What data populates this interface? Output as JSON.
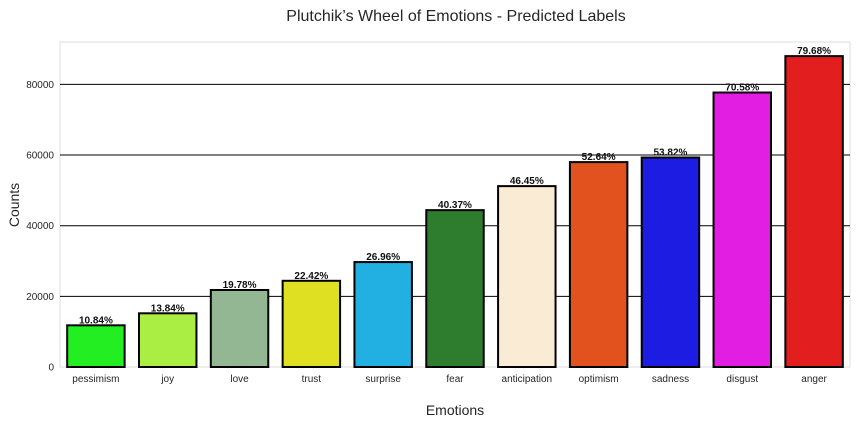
{
  "chart_data": {
    "type": "bar",
    "title": "Plutchik’s Wheel of Emotions - Predicted Labels",
    "xlabel": "Emotions",
    "ylabel": "Counts",
    "ylim": [
      0,
      92000
    ],
    "yticks": [
      0,
      20000,
      40000,
      60000,
      80000
    ],
    "ytick_labels": [
      "0",
      "20000",
      "40000",
      "60000",
      "80000"
    ],
    "grid": "horizontal",
    "categories": [
      "pessimism",
      "joy",
      "love",
      "trust",
      "surprise",
      "fear",
      "anticipation",
      "optimism",
      "sadness",
      "disgust",
      "anger"
    ],
    "values": [
      11800,
      15200,
      21800,
      24400,
      29700,
      44400,
      51200,
      58000,
      59300,
      77700,
      88000
    ],
    "data_labels": [
      "10.84%",
      "13.84%",
      "19.78%",
      "22.42%",
      "26.96%",
      "40.37%",
      "46.45%",
      "52.64%",
      "53.82%",
      "70.58%",
      "79.68%"
    ],
    "colors": [
      "#22ee22",
      "#aaee44",
      "#93b793",
      "#e0e022",
      "#22b0e2",
      "#2e7d2e",
      "#faebd4",
      "#e2521e",
      "#1c1ce2",
      "#e21ee2",
      "#e21e1e"
    ],
    "bar_edge_color": "#000000"
  }
}
